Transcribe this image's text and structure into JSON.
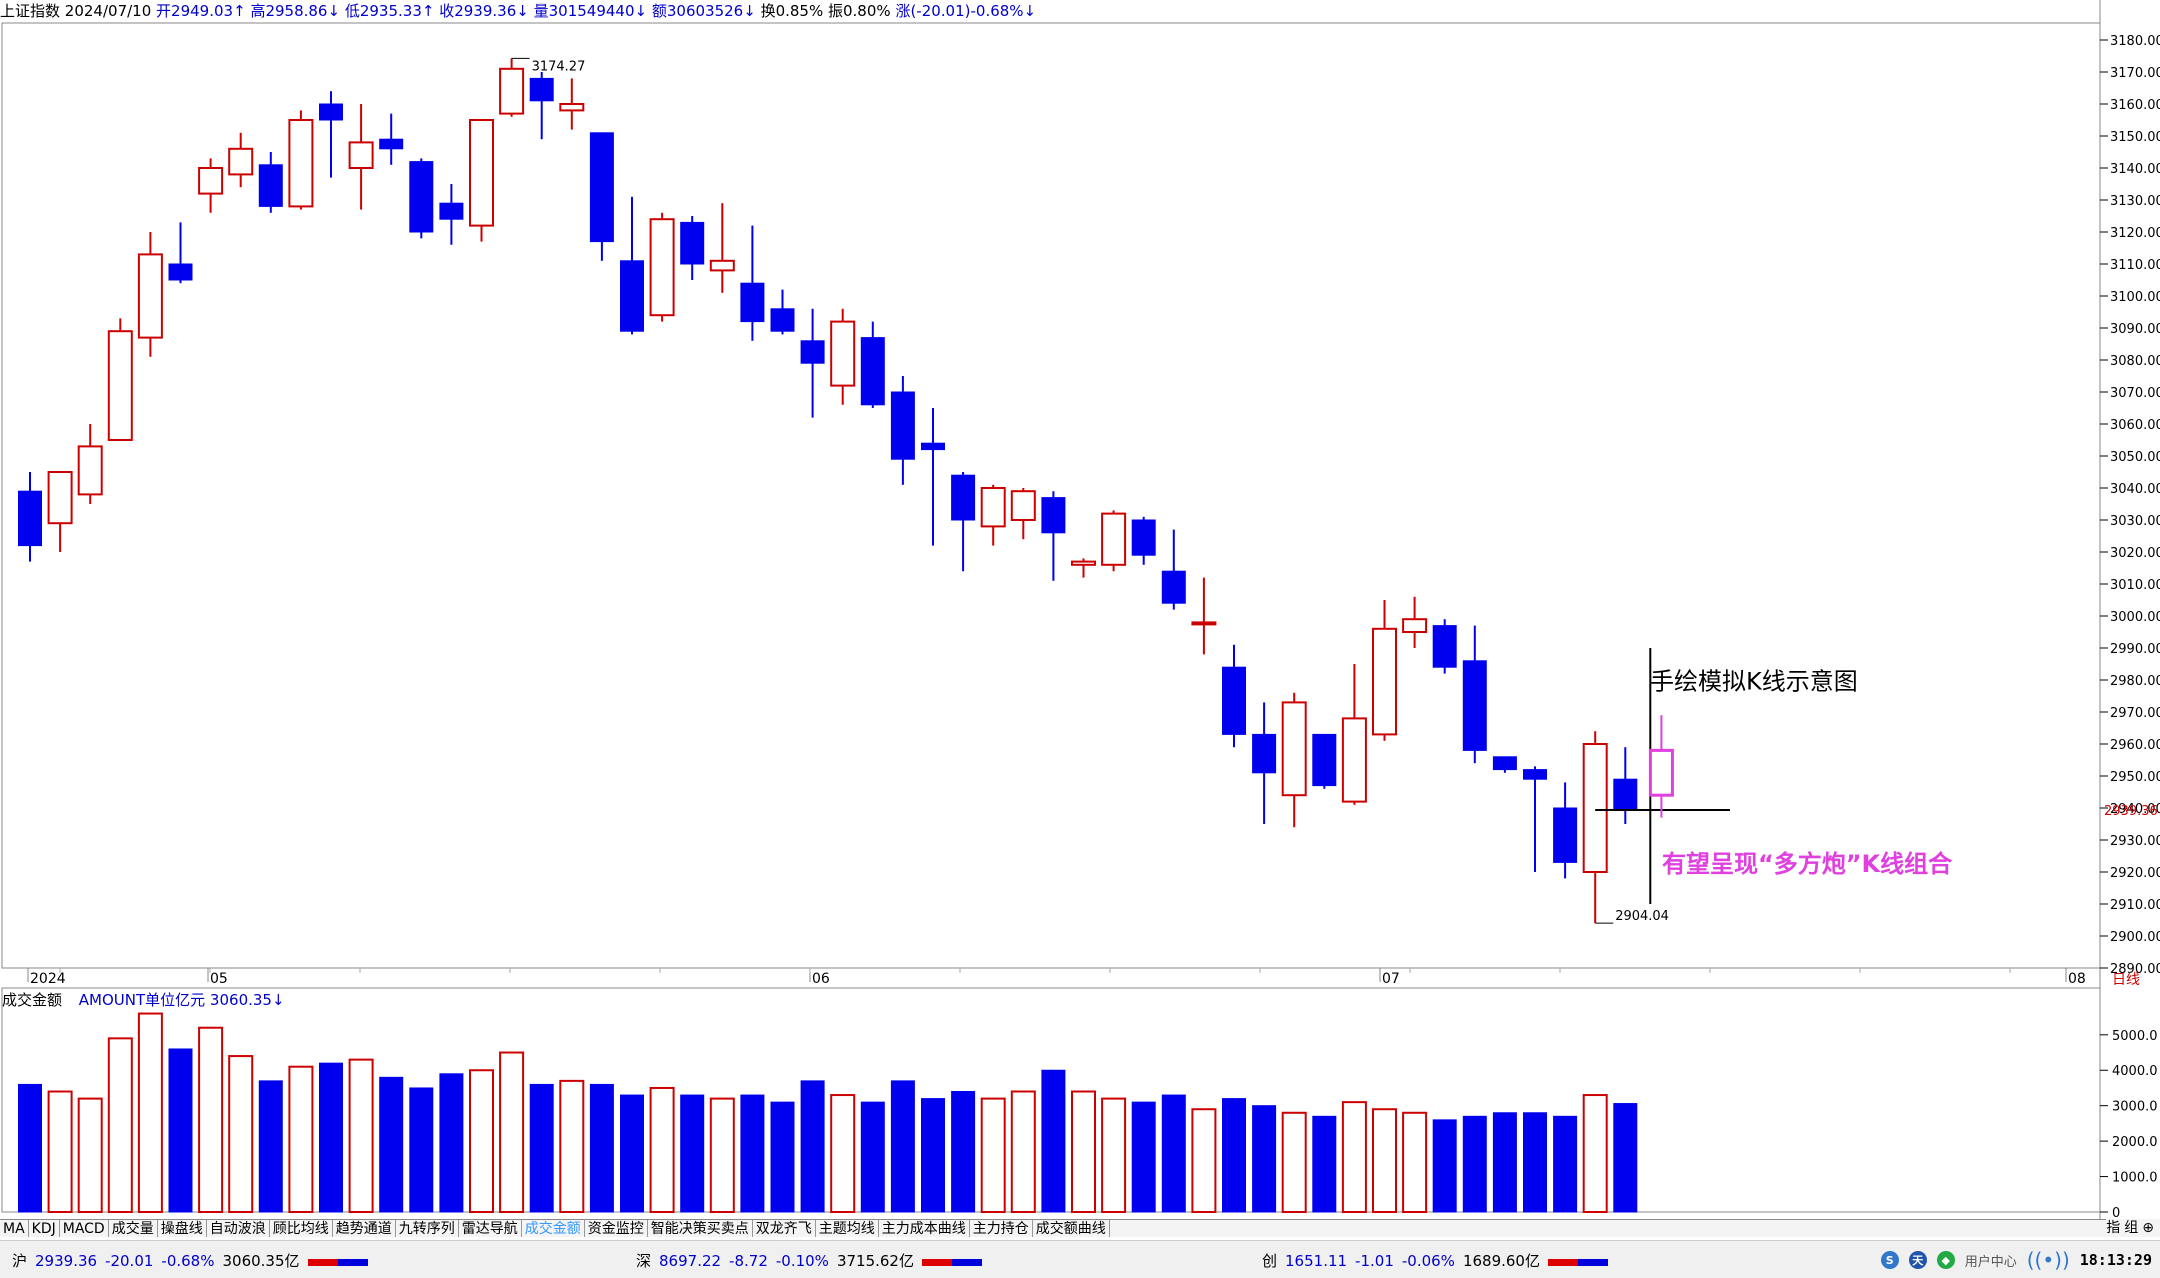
{
  "header": {
    "index_name": "上证指数",
    "date": "2024/07/10",
    "open": "开2949.03↑",
    "high": "高2958.86↓",
    "low": "低2935.33↑",
    "close": "收2939.36↓",
    "volume": "量301549440↓",
    "amount": "额30603526↓",
    "turnover": "换0.85%",
    "amplitude": "振0.80%",
    "change": "涨(-20.01)-0.68%↓"
  },
  "colors": {
    "up": "#cc0000",
    "down": "#0000ee",
    "annotation_magenta": "#e040e0",
    "axis": "#000000"
  },
  "chart_data": [
    {
      "type": "candlestick",
      "title": "上证指数",
      "period_label": "日线",
      "x_labels": [
        "2024",
        "05",
        "06",
        "07",
        "08"
      ],
      "ylim": [
        2890,
        3185
      ],
      "y_ticks": [
        2890,
        2900,
        2910,
        2920,
        2930,
        2940,
        2950,
        2960,
        2970,
        2980,
        2990,
        3000,
        3010,
        3020,
        3030,
        3040,
        3050,
        3060,
        3070,
        3080,
        3090,
        3100,
        3110,
        3120,
        3130,
        3140,
        3150,
        3160,
        3170,
        3180
      ],
      "y_tick_labels": [
        "2890.00",
        "2900.00",
        "2910.00",
        "2920.00",
        "2930.00",
        "2940.00",
        "2950.00",
        "2960.00",
        "2970.00",
        "2980.00",
        "2990.00",
        "3000.00",
        "3010.00",
        "3020.00",
        "3030.00",
        "3040.00",
        "3050.00",
        "3060.00",
        "3070.00",
        "3080.00",
        "3090.00",
        "3100.00",
        "3110.00",
        "3120.00",
        "3130.00",
        "3140.00",
        "3150.00",
        "3160.00",
        "3170.00",
        "3180.00"
      ],
      "ohlc": [
        [
          3039,
          3045,
          3017,
          3022
        ],
        [
          3029,
          3045,
          3020,
          3045
        ],
        [
          3038,
          3060,
          3035,
          3053
        ],
        [
          3055,
          3093,
          3055,
          3089
        ],
        [
          3087,
          3120,
          3081,
          3113
        ],
        [
          3110,
          3123,
          3104,
          3105
        ],
        [
          3132,
          3143,
          3126,
          3140
        ],
        [
          3138,
          3151,
          3134,
          3146
        ],
        [
          3141,
          3145,
          3126,
          3128
        ],
        [
          3128,
          3158,
          3127,
          3155
        ],
        [
          3160,
          3164,
          3137,
          3155
        ],
        [
          3140,
          3160,
          3127,
          3148
        ],
        [
          3149,
          3157,
          3141,
          3146
        ],
        [
          3142,
          3143,
          3118,
          3120
        ],
        [
          3129,
          3135,
          3116,
          3124
        ],
        [
          3122,
          3155,
          3117,
          3155
        ],
        [
          3157,
          3174.27,
          3156,
          3171
        ],
        [
          3168,
          3170,
          3149,
          3161
        ],
        [
          3158,
          3168,
          3152,
          3160
        ],
        [
          3151,
          3151,
          3111,
          3117
        ],
        [
          3111,
          3131,
          3088,
          3089
        ],
        [
          3094,
          3126,
          3092,
          3124
        ],
        [
          3123,
          3125,
          3105,
          3110
        ],
        [
          3108,
          3129,
          3101,
          3111
        ],
        [
          3104,
          3122,
          3086,
          3092
        ],
        [
          3096,
          3102,
          3088,
          3089
        ],
        [
          3086,
          3096,
          3062,
          3079
        ],
        [
          3072,
          3096,
          3066,
          3092
        ],
        [
          3087,
          3092,
          3065,
          3066
        ],
        [
          3070,
          3075,
          3041,
          3049
        ],
        [
          3054,
          3065,
          3022,
          3052
        ],
        [
          3044,
          3045,
          3014,
          3030
        ],
        [
          3028,
          3041,
          3022,
          3040
        ],
        [
          3030,
          3040,
          3024,
          3039
        ],
        [
          3037,
          3039,
          3011,
          3026
        ],
        [
          3016,
          3018,
          3012,
          3017
        ],
        [
          3016,
          3033,
          3014,
          3032
        ],
        [
          3030,
          3031,
          3016,
          3019
        ],
        [
          3014,
          3027,
          3002,
          3004
        ],
        [
          2998,
          3012,
          2988,
          2998
        ],
        [
          2984,
          2991,
          2959,
          2963
        ],
        [
          2963,
          2973,
          2935,
          2951
        ],
        [
          2944,
          2976,
          2934,
          2973
        ],
        [
          2963,
          2963,
          2946,
          2947
        ],
        [
          2942,
          2985,
          2941,
          2968
        ],
        [
          2963,
          3005,
          2961,
          2996
        ],
        [
          2995,
          3006,
          2990,
          2999
        ],
        [
          2997,
          2999,
          2982,
          2984
        ],
        [
          2986,
          2997,
          2954,
          2958
        ],
        [
          2956,
          2956,
          2951,
          2952
        ],
        [
          2952,
          2953,
          2920,
          2949
        ],
        [
          2940,
          2948,
          2918,
          2923
        ],
        [
          2920,
          2964,
          2904.04,
          2960
        ],
        [
          2949,
          2959,
          2935,
          2939.36
        ]
      ],
      "sketch_candle": [
        2944,
        2969,
        2937,
        2958
      ],
      "high_label": "3174.27",
      "low_label": "2904.04",
      "current_price_label": "2939.36",
      "annotations": {
        "sketch_title": "手绘模拟K线示意图",
        "pattern_note": "有望呈现“多方炮”K线组合"
      }
    },
    {
      "type": "bar",
      "title": "成交金额",
      "subtitle": "AMOUNT单位亿元 3060.35↓",
      "ylim": [
        0,
        5700
      ],
      "y_ticks": [
        0,
        1000,
        2000,
        3000,
        4000,
        5000
      ],
      "y_tick_labels": [
        "0",
        "1000.0",
        "2000.0",
        "3000.0",
        "4000.0",
        "5000.0"
      ],
      "values": [
        3600,
        3400,
        3200,
        4900,
        5600,
        4600,
        5200,
        4400,
        3700,
        4100,
        4200,
        4300,
        3800,
        3500,
        3900,
        4000,
        4500,
        3600,
        3700,
        3600,
        3300,
        3500,
        3300,
        3200,
        3300,
        3100,
        3700,
        3300,
        3100,
        3700,
        3200,
        3400,
        3200,
        3400,
        4000,
        3400,
        3200,
        3100,
        3300,
        2900,
        3200,
        3000,
        2800,
        2700,
        3100,
        2900,
        2800,
        2600,
        2700,
        2800,
        2800,
        2700,
        3300,
        3060
      ]
    }
  ],
  "tabs": [
    "MA",
    "KDJ",
    "MACD",
    "成交量",
    "操盘线",
    "自动波浪",
    "顾比均线",
    "趋势通道",
    "九转序列",
    "雷达导航",
    "成交金额",
    "资金监控",
    "智能决策买卖点",
    "双龙齐飞",
    "主题均线",
    "主力成本曲线",
    "主力持仓",
    "成交额曲线"
  ],
  "active_tab": "成交金额",
  "tabs_right": {
    "label": "指",
    "sub": "组"
  },
  "status_bar": {
    "sh": {
      "name": "沪",
      "value": "2939.36",
      "chg": "-20.01",
      "pct": "-0.68%",
      "amount": "3060.35亿"
    },
    "sz": {
      "name": "深",
      "value": "8697.22",
      "chg": "-8.72",
      "pct": "-0.10%",
      "amount": "3715.62亿"
    },
    "cy": {
      "name": "创",
      "value": "1651.11",
      "chg": "-1.01",
      "pct": "-0.06%",
      "amount": "1689.60亿"
    },
    "user_center": "用户中心",
    "time": "18:13:29",
    "icons": [
      "S",
      "天",
      "◆"
    ]
  }
}
